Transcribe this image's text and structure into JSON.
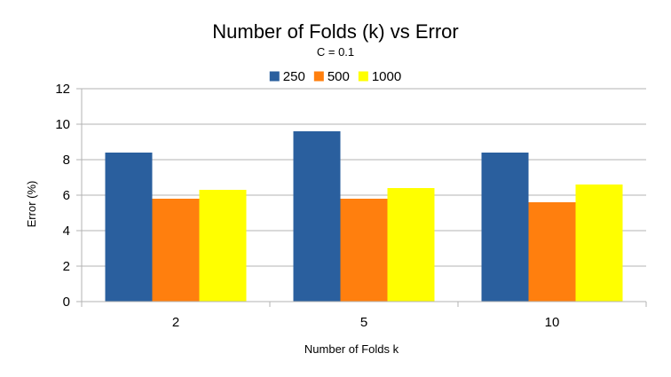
{
  "chart_data": {
    "type": "bar",
    "title": "Number of Folds (k) vs Error",
    "subtitle": "C = 0.1",
    "xlabel": "Number of Folds k",
    "ylabel": "Error (%)",
    "categories": [
      "2",
      "5",
      "10"
    ],
    "ylim": [
      0,
      12
    ],
    "yticks": [
      0,
      2,
      4,
      6,
      8,
      10,
      12
    ],
    "grid": true,
    "legend_position": "top",
    "series": [
      {
        "name": "250",
        "color": "#2a5f9e",
        "values": [
          8.4,
          9.6,
          8.4
        ]
      },
      {
        "name": "500",
        "color": "#ff7f0e",
        "values": [
          5.8,
          5.8,
          5.6
        ]
      },
      {
        "name": "1000",
        "color": "#ffff00",
        "values": [
          6.3,
          6.4,
          6.6
        ]
      }
    ]
  }
}
